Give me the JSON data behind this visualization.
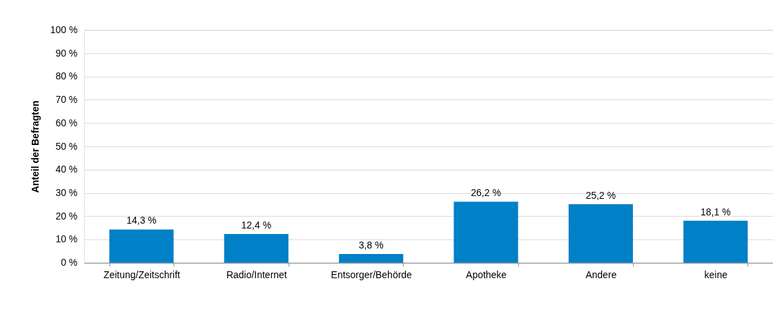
{
  "chart_data": {
    "type": "bar",
    "ylabel": "Anteil der Befragten",
    "categories": [
      "Zeitung/Zeitschrift",
      "Radio/Internet",
      "Entsorger/Behörde",
      "Apotheke",
      "Andere",
      "keine"
    ],
    "values": [
      14.3,
      12.4,
      3.8,
      26.2,
      25.2,
      18.1
    ],
    "value_labels": [
      "14,3 %",
      "12,4 %",
      "3,8 %",
      "26,2 %",
      "25,2 %",
      "18,1 %"
    ],
    "color": "#0080c6",
    "ylim": [
      0,
      100
    ],
    "yticks": [
      {
        "value": 0,
        "label": "0 %"
      },
      {
        "value": 10,
        "label": "10 %"
      },
      {
        "value": 20,
        "label": "20 %"
      },
      {
        "value": 30,
        "label": "30 %"
      },
      {
        "value": 40,
        "label": "40 %"
      },
      {
        "value": 50,
        "label": "50 %"
      },
      {
        "value": 60,
        "label": "60 %"
      },
      {
        "value": 70,
        "label": "70 %"
      },
      {
        "value": 80,
        "label": "80 %"
      },
      {
        "value": 90,
        "label": "90 %"
      },
      {
        "value": 100,
        "label": "100 %"
      }
    ],
    "grid": "y"
  }
}
